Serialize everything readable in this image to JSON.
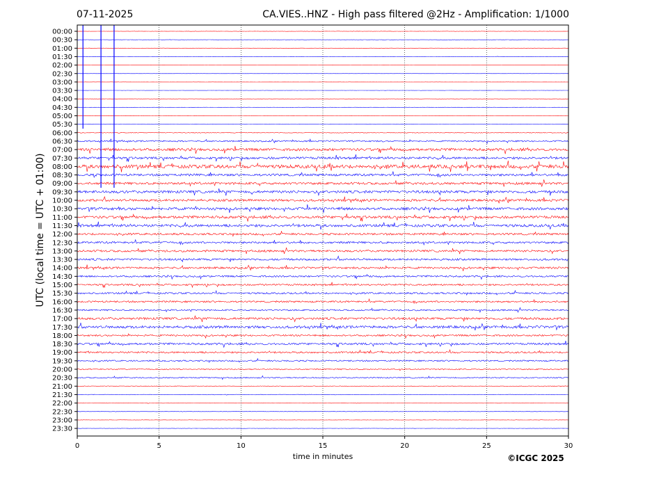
{
  "chart_data": {
    "type": "line",
    "title_left": "07-11-2025",
    "title_right": "CA.VIES..HNZ - High pass filtered @2Hz - Amplification: 1/1000",
    "xlabel": "time in minutes",
    "ylabel": "UTC (local time = UTC + 01:00)",
    "xlim": [
      0,
      30
    ],
    "x_ticks": [
      "0",
      "5",
      "10",
      "15",
      "20",
      "25",
      "30"
    ],
    "x_tick_values": [
      0,
      5,
      10,
      15,
      20,
      25,
      30
    ],
    "x_grid": "dotted vertical lines at 5, 10, 15, 20, 25",
    "rows": [
      "00:00",
      "00:30",
      "01:00",
      "01:30",
      "02:00",
      "02:30",
      "03:00",
      "03:30",
      "04:00",
      "04:30",
      "05:00",
      "05:30",
      "06:00",
      "06:30",
      "07:00",
      "07:30",
      "08:00",
      "08:30",
      "09:00",
      "09:30",
      "10:00",
      "10:30",
      "11:00",
      "11:30",
      "12:00",
      "12:30",
      "13:00",
      "13:30",
      "14:00",
      "14:30",
      "15:00",
      "15:30",
      "16:00",
      "16:30",
      "17:00",
      "17:30",
      "18:00",
      "18:30",
      "19:00",
      "19:30",
      "20:00",
      "20:30",
      "21:00",
      "21:30",
      "22:00",
      "22:30",
      "23:00",
      "23:30"
    ],
    "row_colors": [
      "#ff0000",
      "#0000ff"
    ],
    "row_activity": [
      0.05,
      0.05,
      0.04,
      0.05,
      0.02,
      0.02,
      0.02,
      0.03,
      0.04,
      0.05,
      0.05,
      0.04,
      0.12,
      0.25,
      0.45,
      0.4,
      0.6,
      0.4,
      0.4,
      0.45,
      0.4,
      0.45,
      0.45,
      0.45,
      0.35,
      0.35,
      0.35,
      0.35,
      0.35,
      0.3,
      0.3,
      0.3,
      0.3,
      0.25,
      0.4,
      0.45,
      0.3,
      0.35,
      0.3,
      0.25,
      0.2,
      0.2,
      0.1,
      0.08,
      0.06,
      0.05,
      0.05,
      0.05
    ],
    "copyright": "©ICGC 2025"
  },
  "colors": {
    "odd_row": "#ff0000",
    "even_row": "#0000ff",
    "grid": "#000000"
  }
}
